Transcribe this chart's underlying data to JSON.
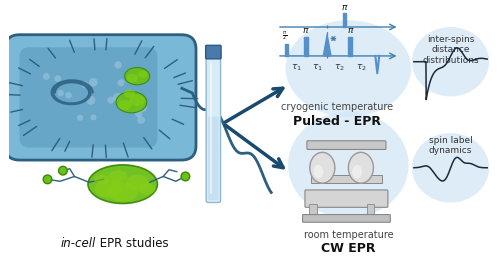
{
  "title_italic": "in-cell",
  "title_rest": " EPR studies",
  "cw_epr_label": "CW EPR",
  "cw_epr_sub": "room temperature",
  "pulsed_epr_label": "Pulsed - EPR",
  "pulsed_epr_sub": "cryogenic temperature",
  "spin_label_text": "spin label\ndynamics",
  "inter_spins_text": "inter-spins\ndistance\ndistributions",
  "bg_color": "#ffffff",
  "cell_outer_color": "#7ab8d8",
  "cell_border_color": "#2d5f80",
  "cell_inner_color": "#5898b8",
  "protein_color": "#6abf1a",
  "protein_edge": "#3a8a05",
  "arrow_color": "#1a4a6e",
  "pulse_color": "#5590c8",
  "signal_color": "#1a2a3a",
  "light_blue": "#d5e8f5",
  "tube_body_color": "#c8dff0",
  "tube_cap_color": "#4a7aaa",
  "dna_color": "#2d5f80",
  "dot_color": "#a0c8e0"
}
